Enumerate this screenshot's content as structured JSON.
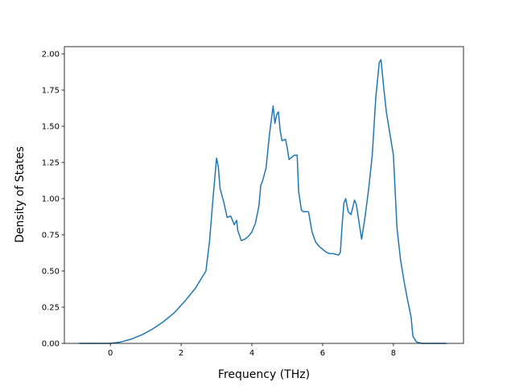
{
  "chart_data": {
    "type": "line",
    "title": "",
    "xlabel": "Frequency (THz)",
    "ylabel": "Density of States",
    "xlim": [
      -1.3,
      9.98
    ],
    "ylim": [
      0,
      2.05
    ],
    "xticks": [
      0,
      2,
      4,
      6,
      8
    ],
    "yticks": [
      0.0,
      0.25,
      0.5,
      0.75,
      1.0,
      1.25,
      1.5,
      1.75,
      2.0
    ],
    "xtick_labels": [
      "0",
      "2",
      "4",
      "6",
      "8"
    ],
    "ytick_labels": [
      "0.00",
      "0.25",
      "0.50",
      "0.75",
      "1.00",
      "1.25",
      "1.50",
      "1.75",
      "2.00"
    ],
    "grid": false,
    "line_color": "#1f77b4",
    "series": [
      {
        "x": [
          -0.88,
          -0.5,
          0.0,
          0.3,
          0.6,
          0.9,
          1.2,
          1.5,
          1.8,
          2.1,
          2.4,
          2.7,
          2.8,
          2.9,
          3.0,
          3.05,
          3.1,
          3.2,
          3.3,
          3.4,
          3.5,
          3.57,
          3.6,
          3.7,
          3.8,
          3.9,
          4.0,
          4.1,
          4.2,
          4.25,
          4.3,
          4.4,
          4.5,
          4.6,
          4.65,
          4.7,
          4.75,
          4.8,
          4.85,
          4.95,
          5.0,
          5.05,
          5.1,
          5.2,
          5.28,
          5.32,
          5.4,
          5.45,
          5.6,
          5.7,
          5.8,
          5.9,
          6.0,
          6.1,
          6.2,
          6.3,
          6.45,
          6.5,
          6.55,
          6.6,
          6.65,
          6.72,
          6.8,
          6.9,
          6.95,
          7.0,
          7.05,
          7.1,
          7.2,
          7.3,
          7.4,
          7.5,
          7.6,
          7.65,
          7.72,
          7.8,
          7.9,
          8.0,
          8.1,
          8.2,
          8.3,
          8.4,
          8.5,
          8.55,
          8.65,
          8.8,
          9.0,
          9.3,
          9.5
        ],
        "y": [
          0.0,
          0.0,
          0.0,
          0.01,
          0.03,
          0.06,
          0.1,
          0.15,
          0.21,
          0.29,
          0.38,
          0.5,
          0.7,
          1.0,
          1.28,
          1.22,
          1.07,
          0.98,
          0.87,
          0.88,
          0.82,
          0.85,
          0.78,
          0.71,
          0.72,
          0.74,
          0.77,
          0.83,
          0.95,
          1.09,
          1.12,
          1.21,
          1.45,
          1.64,
          1.52,
          1.58,
          1.6,
          1.47,
          1.4,
          1.41,
          1.35,
          1.27,
          1.28,
          1.3,
          1.3,
          1.05,
          0.92,
          0.91,
          0.91,
          0.77,
          0.7,
          0.67,
          0.65,
          0.63,
          0.62,
          0.62,
          0.61,
          0.63,
          0.82,
          0.97,
          1.0,
          0.91,
          0.89,
          0.99,
          0.96,
          0.88,
          0.8,
          0.72,
          0.88,
          1.07,
          1.3,
          1.7,
          1.94,
          1.96,
          1.78,
          1.6,
          1.45,
          1.3,
          0.8,
          0.58,
          0.43,
          0.3,
          0.18,
          0.05,
          0.01,
          0.0,
          0.0,
          0.0,
          0.0
        ]
      }
    ]
  }
}
